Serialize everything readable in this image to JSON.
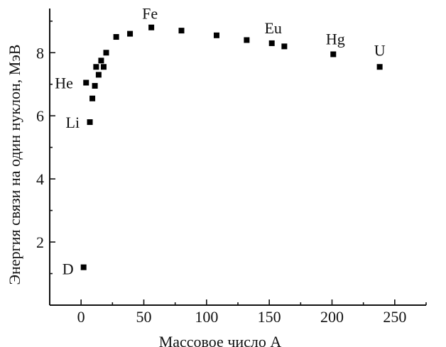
{
  "chart_data": {
    "type": "scatter",
    "xlabel": "Массовое число A",
    "ylabel": "Энергия связи на один нуклон, МэВ",
    "xlim": [
      -25,
      275
    ],
    "ylim": [
      0,
      9.4
    ],
    "xticks": [
      0,
      50,
      100,
      150,
      200,
      250
    ],
    "yticks": [
      2,
      4,
      6,
      8
    ],
    "grid": false,
    "points": [
      {
        "x": 2,
        "y": 1.2
      },
      {
        "x": 4,
        "y": 7.05
      },
      {
        "x": 7,
        "y": 5.8
      },
      {
        "x": 9,
        "y": 6.55
      },
      {
        "x": 11,
        "y": 6.95
      },
      {
        "x": 12,
        "y": 7.55
      },
      {
        "x": 14,
        "y": 7.3
      },
      {
        "x": 16,
        "y": 7.75
      },
      {
        "x": 18,
        "y": 7.55
      },
      {
        "x": 20,
        "y": 8.0
      },
      {
        "x": 28,
        "y": 8.5
      },
      {
        "x": 39,
        "y": 8.6
      },
      {
        "x": 56,
        "y": 8.8
      },
      {
        "x": 80,
        "y": 8.7
      },
      {
        "x": 108,
        "y": 8.55
      },
      {
        "x": 132,
        "y": 8.4
      },
      {
        "x": 152,
        "y": 8.3
      },
      {
        "x": 162,
        "y": 8.2
      },
      {
        "x": 201,
        "y": 7.95
      },
      {
        "x": 238,
        "y": 7.55
      }
    ],
    "annotations": [
      {
        "text": "D",
        "x": 2,
        "y": 1.2
      },
      {
        "text": "He",
        "x": 4,
        "y": 7.05
      },
      {
        "text": "Li",
        "x": 7,
        "y": 5.8
      },
      {
        "text": "Fe",
        "x": 56,
        "y": 8.8
      },
      {
        "text": "Eu",
        "x": 152,
        "y": 8.3
      },
      {
        "text": "Hg",
        "x": 201,
        "y": 7.95
      },
      {
        "text": "U",
        "x": 238,
        "y": 7.55
      }
    ]
  }
}
